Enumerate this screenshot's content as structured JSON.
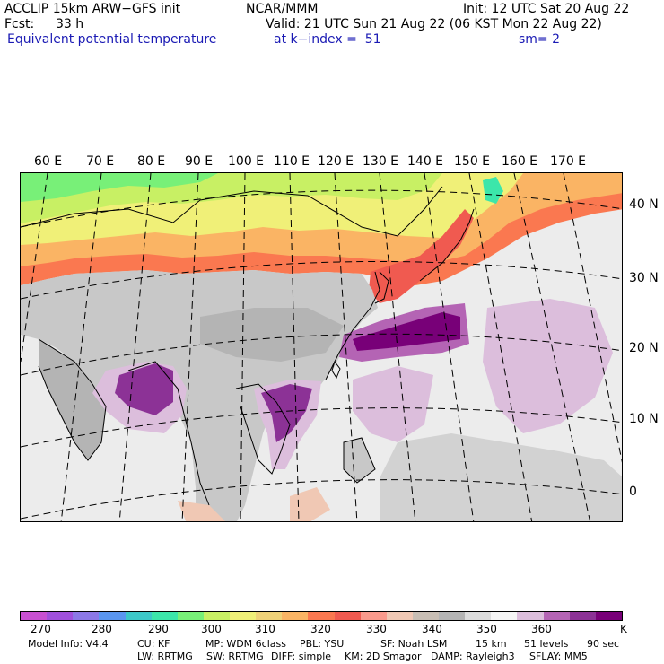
{
  "header": {
    "model": "ACCLIP 15km ARW−GFS init",
    "org": "NCAR/MMM",
    "init": "Init: 12 UTC Sat 20 Aug 22",
    "fcst_label": "Fcst:",
    "fcst_value": "33 h",
    "valid": "Valid: 21 UTC Sun 21 Aug 22 (06 KST Mon 22 Aug 22)",
    "field": "Equivalent potential temperature",
    "level": "at k−index =  51",
    "smooth": "sm= 2"
  },
  "map": {
    "lon_labels": [
      "60 E",
      "70 E",
      "80 E",
      "90 E",
      "100 E",
      "110 E",
      "120 E",
      "130 E",
      "140 E",
      "150 E",
      "160 E",
      "170 E"
    ],
    "lat_labels": [
      "40 N",
      "30 N",
      "20 N",
      "10 N",
      "0"
    ],
    "projection": "lambert-conformal",
    "ocean_color": "#ececec",
    "land_color": "#c8c8c8"
  },
  "colorbar": {
    "colors": [
      "#c850d2",
      "#a050dc",
      "#8c78e6",
      "#5a96f0",
      "#3cc8c8",
      "#3ce6aa",
      "#78f078",
      "#c8f064",
      "#f0f078",
      "#f0d278",
      "#fab464",
      "#fa7850",
      "#f05a50",
      "#fa9a8c",
      "#f0c8b4",
      "#c8beb4",
      "#b4b4b4",
      "#dcdcdc",
      "#f5f5f5",
      "#dcbedc",
      "#b464b4",
      "#8c3296",
      "#780078"
    ],
    "ticks": [
      "270",
      "280",
      "290",
      "300",
      "310",
      "320",
      "330",
      "340",
      "350",
      "360"
    ],
    "unit": "K"
  },
  "footer": {
    "line1": [
      "Model Info: V4.4",
      "CU: KF",
      "MP: WDM 6class",
      "PBL: YSU",
      "SF: Noah LSM",
      "15 km",
      "51 levels",
      "90 sec"
    ],
    "line2": [
      "LW: RRTMG",
      "SW: RRTMG",
      "DIFF: simple",
      "KM: 2D Smagor",
      "DAMP: Rayleigh3",
      "SFLAY: MM5"
    ]
  }
}
